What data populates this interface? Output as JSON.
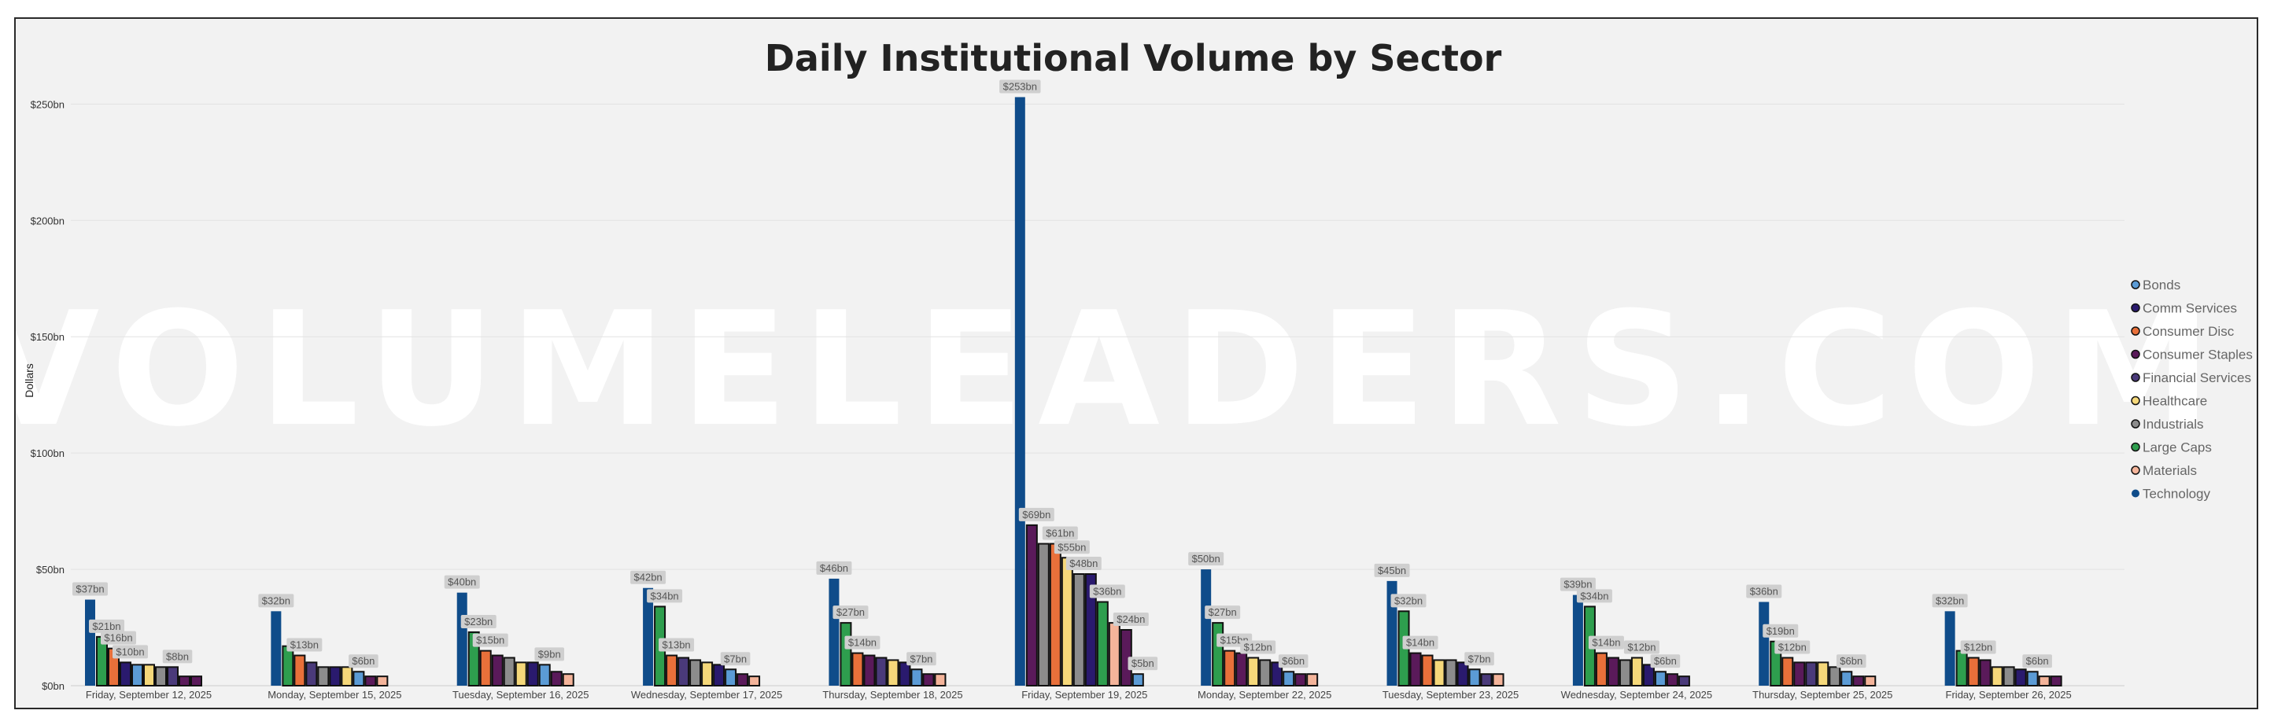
{
  "watermark": "VOLUMELEADERS.COM",
  "chart_data": {
    "type": "bar",
    "title": "Daily Institutional Volume by Sector",
    "ylabel": "Dollars",
    "xlabel": "",
    "ylim": [
      0,
      265
    ],
    "yticks": [
      0,
      50,
      100,
      150,
      200,
      250
    ],
    "ytick_labels": [
      "$0bn",
      "$50bn",
      "$100bn",
      "$150bn",
      "$200bn",
      "$250bn"
    ],
    "legend_position": "right",
    "grid": true,
    "categories": [
      "Friday, September 12, 2025",
      "Monday, September 15, 2025",
      "Tuesday, September 16, 2025",
      "Wednesday, September 17, 2025",
      "Thursday, September 18, 2025",
      "Friday, September 19, 2025",
      "Monday, September 22, 2025",
      "Tuesday, September 23, 2025",
      "Wednesday, September 24, 2025",
      "Thursday, September 25, 2025",
      "Friday, September 26, 2025"
    ],
    "series": [
      {
        "name": "Bonds",
        "color": "#5b9bd5"
      },
      {
        "name": "Comm Services",
        "color": "#2a1a6e"
      },
      {
        "name": "Consumer Disc",
        "color": "#e8703a"
      },
      {
        "name": "Consumer Staples",
        "color": "#5a1a5a"
      },
      {
        "name": "Financial Services",
        "color": "#4a3a7a"
      },
      {
        "name": "Healthcare",
        "color": "#f5d87a"
      },
      {
        "name": "Industrials",
        "color": "#8c8c8c"
      },
      {
        "name": "Large Caps",
        "color": "#2e9e4e"
      },
      {
        "name": "Materials",
        "color": "#f4b49a"
      },
      {
        "name": "Technology",
        "color": "#0f4c8a"
      }
    ],
    "days": [
      {
        "bars": [
          {
            "s": 9,
            "v": 37,
            "label": "$37bn"
          },
          {
            "s": 7,
            "v": 21,
            "label": "$21bn"
          },
          {
            "s": 2,
            "v": 16,
            "label": "$16bn"
          },
          {
            "s": 1,
            "v": 10,
            "label": "$10bn"
          },
          {
            "s": 0,
            "v": 9
          },
          {
            "s": 5,
            "v": 9
          },
          {
            "s": 6,
            "v": 8
          },
          {
            "s": 4,
            "v": 8,
            "label": "$8bn"
          },
          {
            "s": 3,
            "v": 4
          },
          {
            "s": 3,
            "v": 4
          }
        ]
      },
      {
        "bars": [
          {
            "s": 9,
            "v": 32,
            "label": "$32bn"
          },
          {
            "s": 7,
            "v": 17
          },
          {
            "s": 2,
            "v": 13,
            "label": "$13bn"
          },
          {
            "s": 4,
            "v": 10
          },
          {
            "s": 6,
            "v": 8
          },
          {
            "s": 1,
            "v": 8
          },
          {
            "s": 5,
            "v": 8
          },
          {
            "s": 0,
            "v": 6,
            "label": "$6bn"
          },
          {
            "s": 3,
            "v": 4
          },
          {
            "s": 8,
            "v": 4
          }
        ]
      },
      {
        "bars": [
          {
            "s": 9,
            "v": 40,
            "label": "$40bn"
          },
          {
            "s": 7,
            "v": 23,
            "label": "$23bn"
          },
          {
            "s": 2,
            "v": 15,
            "label": "$15bn"
          },
          {
            "s": 3,
            "v": 13
          },
          {
            "s": 6,
            "v": 12
          },
          {
            "s": 5,
            "v": 10
          },
          {
            "s": 1,
            "v": 10
          },
          {
            "s": 0,
            "v": 9,
            "label": "$9bn"
          },
          {
            "s": 3,
            "v": 6
          },
          {
            "s": 8,
            "v": 5
          }
        ]
      },
      {
        "bars": [
          {
            "s": 9,
            "v": 42,
            "label": "$42bn"
          },
          {
            "s": 7,
            "v": 34,
            "label": "$34bn"
          },
          {
            "s": 2,
            "v": 13,
            "label": "$13bn"
          },
          {
            "s": 4,
            "v": 12
          },
          {
            "s": 6,
            "v": 11
          },
          {
            "s": 5,
            "v": 10
          },
          {
            "s": 1,
            "v": 9
          },
          {
            "s": 0,
            "v": 7,
            "label": "$7bn"
          },
          {
            "s": 3,
            "v": 5
          },
          {
            "s": 8,
            "v": 4
          }
        ]
      },
      {
        "bars": [
          {
            "s": 9,
            "v": 46,
            "label": "$46bn"
          },
          {
            "s": 7,
            "v": 27,
            "label": "$27bn"
          },
          {
            "s": 2,
            "v": 14,
            "label": "$14bn"
          },
          {
            "s": 3,
            "v": 13
          },
          {
            "s": 4,
            "v": 12
          },
          {
            "s": 5,
            "v": 11
          },
          {
            "s": 1,
            "v": 10
          },
          {
            "s": 0,
            "v": 7,
            "label": "$7bn"
          },
          {
            "s": 3,
            "v": 5
          },
          {
            "s": 8,
            "v": 5
          }
        ]
      },
      {
        "bars": [
          {
            "s": 9,
            "v": 253,
            "label": "$253bn"
          },
          {
            "s": 3,
            "v": 69,
            "label": "$69bn"
          },
          {
            "s": 6,
            "v": 61
          },
          {
            "s": 2,
            "v": 61,
            "label": "$61bn"
          },
          {
            "s": 5,
            "v": 55,
            "label": "$55bn"
          },
          {
            "s": 6,
            "v": 48,
            "label": "$48bn"
          },
          {
            "s": 1,
            "v": 48
          },
          {
            "s": 7,
            "v": 36,
            "label": "$36bn"
          },
          {
            "s": 8,
            "v": 27
          },
          {
            "s": 3,
            "v": 24,
            "label": "$24bn"
          },
          {
            "s": 0,
            "v": 5,
            "label": "$5bn"
          }
        ]
      },
      {
        "bars": [
          {
            "s": 9,
            "v": 50,
            "label": "$50bn"
          },
          {
            "s": 7,
            "v": 27,
            "label": "$27bn"
          },
          {
            "s": 2,
            "v": 15,
            "label": "$15bn"
          },
          {
            "s": 3,
            "v": 14
          },
          {
            "s": 5,
            "v": 12,
            "label": "$12bn"
          },
          {
            "s": 6,
            "v": 11
          },
          {
            "s": 1,
            "v": 10
          },
          {
            "s": 0,
            "v": 6,
            "label": "$6bn"
          },
          {
            "s": 3,
            "v": 5
          },
          {
            "s": 8,
            "v": 5
          }
        ]
      },
      {
        "bars": [
          {
            "s": 9,
            "v": 45,
            "label": "$45bn"
          },
          {
            "s": 7,
            "v": 32,
            "label": "$32bn"
          },
          {
            "s": 3,
            "v": 14,
            "label": "$14bn"
          },
          {
            "s": 2,
            "v": 13
          },
          {
            "s": 5,
            "v": 11
          },
          {
            "s": 6,
            "v": 11
          },
          {
            "s": 1,
            "v": 10
          },
          {
            "s": 0,
            "v": 7,
            "label": "$7bn"
          },
          {
            "s": 4,
            "v": 5
          },
          {
            "s": 8,
            "v": 5
          }
        ]
      },
      {
        "bars": [
          {
            "s": 9,
            "v": 39,
            "label": "$39bn"
          },
          {
            "s": 7,
            "v": 34,
            "label": "$34bn"
          },
          {
            "s": 2,
            "v": 14,
            "label": "$14bn"
          },
          {
            "s": 3,
            "v": 12
          },
          {
            "s": 6,
            "v": 11
          },
          {
            "s": 5,
            "v": 12,
            "label": "$12bn"
          },
          {
            "s": 1,
            "v": 9
          },
          {
            "s": 0,
            "v": 6,
            "label": "$6bn"
          },
          {
            "s": 3,
            "v": 5
          },
          {
            "s": 4,
            "v": 4
          }
        ]
      },
      {
        "bars": [
          {
            "s": 9,
            "v": 36,
            "label": "$36bn"
          },
          {
            "s": 7,
            "v": 19,
            "label": "$19bn"
          },
          {
            "s": 2,
            "v": 12,
            "label": "$12bn"
          },
          {
            "s": 3,
            "v": 10
          },
          {
            "s": 4,
            "v": 10
          },
          {
            "s": 5,
            "v": 10
          },
          {
            "s": 6,
            "v": 8
          },
          {
            "s": 0,
            "v": 6,
            "label": "$6bn"
          },
          {
            "s": 3,
            "v": 4
          },
          {
            "s": 8,
            "v": 4
          }
        ]
      },
      {
        "bars": [
          {
            "s": 9,
            "v": 32,
            "label": "$32bn"
          },
          {
            "s": 7,
            "v": 15
          },
          {
            "s": 2,
            "v": 12,
            "label": "$12bn"
          },
          {
            "s": 3,
            "v": 11
          },
          {
            "s": 5,
            "v": 8
          },
          {
            "s": 6,
            "v": 8
          },
          {
            "s": 1,
            "v": 7
          },
          {
            "s": 0,
            "v": 6,
            "label": "$6bn"
          },
          {
            "s": 8,
            "v": 4
          },
          {
            "s": 3,
            "v": 4
          }
        ]
      }
    ]
  }
}
